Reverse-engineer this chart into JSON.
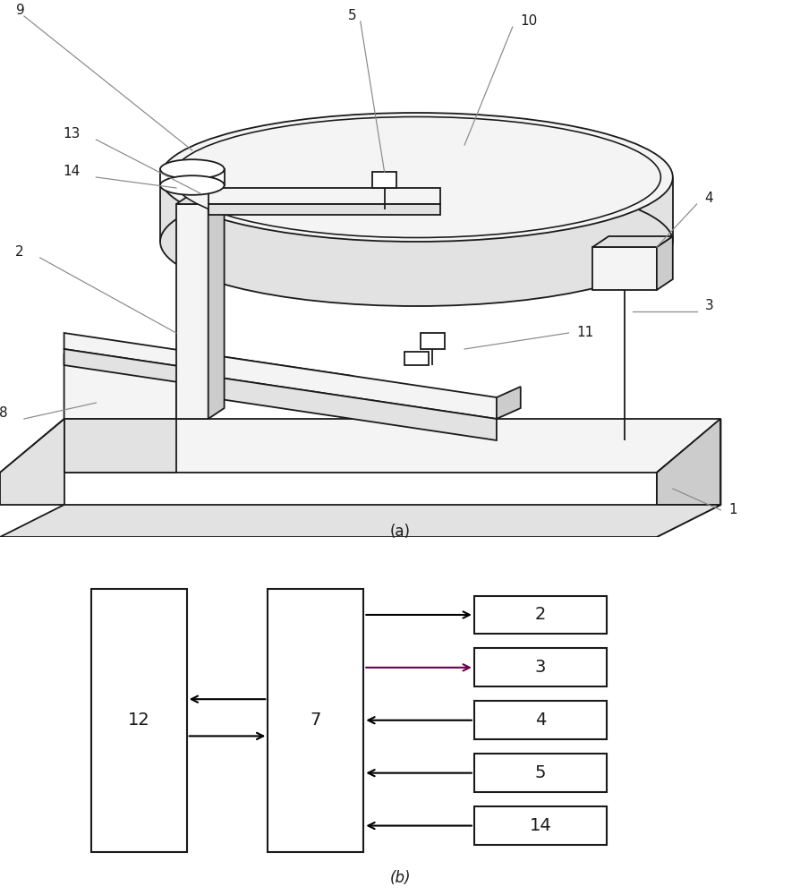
{
  "bg_color": "#ffffff",
  "line_color": "#1a1a1a",
  "gray_line": "#888888",
  "fig_width": 8.95,
  "fig_height": 10.0,
  "dpi": 100,
  "part_a_label": "(a)",
  "part_b_label": "(b)",
  "lw_main": 1.3,
  "lw_leader": 0.85,
  "face_light": "#f4f4f4",
  "face_mid": "#e2e2e2",
  "face_dark": "#cccccc",
  "face_white": "#ffffff",
  "diagram_b": {
    "box12_label": "12",
    "box7_label": "7",
    "right_boxes": [
      "2",
      "3",
      "4",
      "5",
      "14"
    ]
  }
}
